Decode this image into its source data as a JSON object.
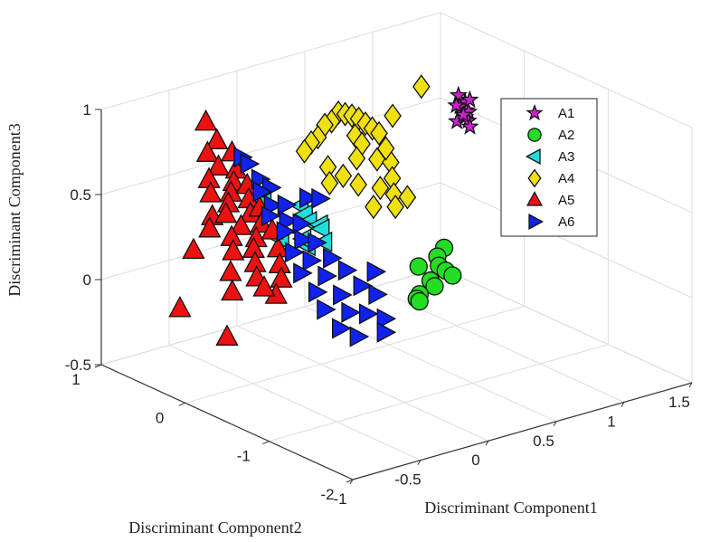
{
  "chart_data": {
    "type": "scatter3d",
    "xlabel": "Discriminant Component1",
    "ylabel": "Discriminant Component2",
    "zlabel": "Discriminant Component3",
    "xlim": [
      -1,
      1.5
    ],
    "ylim": [
      -2,
      1
    ],
    "zlim": [
      -0.5,
      1
    ],
    "xticks": [
      "-1",
      "-0.5",
      "0",
      "0.5",
      "1",
      "1.5"
    ],
    "yticks": [
      "-2",
      "-1",
      "0",
      "1"
    ],
    "zticks": [
      "-0.5",
      "0",
      "0.5",
      "1"
    ],
    "grid": true,
    "legend_position": "top-right inside",
    "series": [
      {
        "name": "A1",
        "marker": "star",
        "color": "#cc22cc",
        "points": [
          [
            1.2,
            0.3,
            0.74
          ],
          [
            1.23,
            0.27,
            0.7
          ],
          [
            1.18,
            0.25,
            0.69
          ],
          [
            1.22,
            0.24,
            0.66
          ],
          [
            1.2,
            0.22,
            0.63
          ],
          [
            1.21,
            0.2,
            0.61
          ],
          [
            1.25,
            0.26,
            0.64
          ],
          [
            1.19,
            0.31,
            0.68
          ],
          [
            1.24,
            0.23,
            0.72
          ],
          [
            1.17,
            0.27,
            0.6
          ],
          [
            1.23,
            0.29,
            0.62
          ],
          [
            1.21,
            0.18,
            0.58
          ]
        ]
      },
      {
        "name": "A2",
        "marker": "circle",
        "color": "#22dd22",
        "points": [
          [
            0.6,
            -0.5,
            0.16
          ],
          [
            0.55,
            -0.5,
            0.12
          ],
          [
            0.5,
            -0.6,
            0.1
          ],
          [
            0.55,
            -0.6,
            0.06
          ],
          [
            0.6,
            -0.6,
            0.02
          ],
          [
            0.35,
            -0.6,
            0.13
          ],
          [
            0.5,
            -0.5,
            -0.01
          ],
          [
            0.53,
            -0.5,
            -0.05
          ],
          [
            0.45,
            -0.45,
            -0.09
          ],
          [
            0.46,
            -0.4,
            -0.13
          ],
          [
            0.48,
            -0.4,
            -0.15
          ]
        ]
      },
      {
        "name": "A3",
        "marker": "triangle-left",
        "color": "#22dddd",
        "points": [
          [
            -0.05,
            0.6,
            0.34
          ],
          [
            0.1,
            0.4,
            0.32
          ],
          [
            0.1,
            0.35,
            0.28
          ],
          [
            0.1,
            0.3,
            0.25
          ],
          [
            0.15,
            0.25,
            0.23
          ],
          [
            0.1,
            0.15,
            0.24
          ],
          [
            0.15,
            0.2,
            0.14
          ],
          [
            0.12,
            0.35,
            0.09
          ],
          [
            0.12,
            0.4,
            0.12
          ],
          [
            0.05,
            0.55,
            0.1
          ]
        ]
      },
      {
        "name": "A4",
        "marker": "diamond",
        "color": "#f0e010",
        "points": [
          [
            0.5,
            0.6,
            0.73
          ],
          [
            0.55,
            0.6,
            0.71
          ],
          [
            0.45,
            0.6,
            0.69
          ],
          [
            0.6,
            0.6,
            0.69
          ],
          [
            0.4,
            0.6,
            0.68
          ],
          [
            0.65,
            0.6,
            0.66
          ],
          [
            0.35,
            0.6,
            0.62
          ],
          [
            0.7,
            0.6,
            0.62
          ],
          [
            0.5,
            0.4,
            0.64
          ],
          [
            0.3,
            0.6,
            0.6
          ],
          [
            0.75,
            0.6,
            0.58
          ],
          [
            0.25,
            0.6,
            0.56
          ],
          [
            0.8,
            0.6,
            0.54
          ],
          [
            0.9,
            0.6,
            0.62
          ],
          [
            0.55,
            0.4,
            0.58
          ],
          [
            0.45,
            0.3,
            0.54
          ],
          [
            0.6,
            0.3,
            0.5
          ],
          [
            0.35,
            0.3,
            0.46
          ],
          [
            0.7,
            0.3,
            0.46
          ],
          [
            0.4,
            0.2,
            0.42
          ],
          [
            0.65,
            0.2,
            0.4
          ],
          [
            0.5,
            0.1,
            0.4
          ],
          [
            0.6,
            0.1,
            0.34
          ],
          [
            0.45,
            0.1,
            0.3
          ],
          [
            0.7,
            0.1,
            0.3
          ],
          [
            0.55,
            0.0,
            0.3
          ],
          [
            0.3,
            0.4,
            0.5
          ],
          [
            1.05,
            0.5,
            0.78
          ],
          [
            0.85,
            0.6,
            0.44
          ],
          [
            0.25,
            0.3,
            0.44
          ]
        ]
      },
      {
        "name": "A5",
        "marker": "triangle-up",
        "color": "#ee1111",
        "points": [
          [
            -0.6,
            0.4,
            0.97
          ],
          [
            -0.55,
            0.35,
            0.86
          ],
          [
            -0.65,
            0.3,
            0.82
          ],
          [
            -0.5,
            0.25,
            0.8
          ],
          [
            -0.6,
            0.25,
            0.74
          ],
          [
            -0.5,
            0.2,
            0.71
          ],
          [
            -0.7,
            0.2,
            0.7
          ],
          [
            -0.55,
            0.15,
            0.66
          ],
          [
            -0.75,
            0.1,
            0.65
          ],
          [
            -0.6,
            0.1,
            0.62
          ],
          [
            -0.45,
            0.15,
            0.62
          ],
          [
            -0.65,
            0.05,
            0.58
          ],
          [
            -0.5,
            0.05,
            0.57
          ],
          [
            -0.8,
            0.0,
            0.55
          ],
          [
            -0.7,
            0.0,
            0.54
          ],
          [
            -0.55,
            -0.05,
            0.52
          ],
          [
            -0.45,
            0.0,
            0.52
          ],
          [
            -0.85,
            -0.05,
            0.5
          ],
          [
            -0.65,
            -0.1,
            0.48
          ],
          [
            -0.5,
            -0.1,
            0.46
          ],
          [
            -0.75,
            -0.15,
            0.45
          ],
          [
            -0.6,
            -0.2,
            0.42
          ],
          [
            -0.45,
            -0.15,
            0.42
          ],
          [
            -0.8,
            -0.25,
            0.4
          ],
          [
            -0.65,
            -0.25,
            0.38
          ],
          [
            -0.5,
            -0.3,
            0.36
          ],
          [
            -0.7,
            -0.35,
            0.33
          ],
          [
            -0.55,
            -0.4,
            0.3
          ],
          [
            -0.75,
            -0.45,
            0.28
          ],
          [
            -0.6,
            -0.5,
            0.25
          ],
          [
            -1.0,
            -0.1,
            0.42
          ],
          [
            -0.85,
            -0.3,
            0.3
          ],
          [
            -0.9,
            -0.4,
            0.22
          ],
          [
            -0.7,
            -0.6,
            0.2
          ],
          [
            -0.85,
            -0.7,
            0.3
          ],
          [
            -1.1,
            -0.1,
            0.1
          ],
          [
            -1.0,
            -0.5,
            0.0
          ]
        ]
      },
      {
        "name": "A6",
        "marker": "triangle-right",
        "color": "#1122ee",
        "points": [
          [
            -0.4,
            0.3,
            0.74
          ],
          [
            -0.35,
            0.3,
            0.69
          ],
          [
            -0.3,
            0.25,
            0.6
          ],
          [
            -0.25,
            0.2,
            0.55
          ],
          [
            -0.35,
            0.15,
            0.56
          ],
          [
            -0.3,
            0.1,
            0.48
          ],
          [
            -0.2,
            0.1,
            0.46
          ],
          [
            -0.35,
            0.05,
            0.44
          ],
          [
            -0.25,
            0.0,
            0.4
          ],
          [
            -0.15,
            0.0,
            0.36
          ],
          [
            -0.3,
            -0.05,
            0.36
          ],
          [
            -0.2,
            -0.1,
            0.3
          ],
          [
            -0.1,
            -0.1,
            0.26
          ],
          [
            -0.3,
            -0.15,
            0.26
          ],
          [
            -0.2,
            -0.2,
            0.2
          ],
          [
            -0.05,
            -0.2,
            0.18
          ],
          [
            -0.3,
            -0.25,
            0.16
          ],
          [
            -0.15,
            -0.3,
            0.12
          ],
          [
            0.0,
            -0.3,
            0.12
          ],
          [
            -0.25,
            -0.35,
            0.06
          ],
          [
            -0.1,
            -0.4,
            0.02
          ],
          [
            0.05,
            -0.4,
            0.04
          ],
          [
            -0.25,
            -0.45,
            -0.02
          ],
          [
            -0.1,
            -0.5,
            -0.06
          ],
          [
            0.1,
            -0.5,
            0.0
          ],
          [
            -0.2,
            -0.55,
            -0.12
          ],
          [
            0.0,
            -0.55,
            -0.08
          ],
          [
            -0.1,
            -0.6,
            -0.18
          ],
          [
            0.1,
            -0.6,
            -0.12
          ],
          [
            0.15,
            -0.4,
            0.1
          ],
          [
            0.1,
            -0.6,
            -0.2
          ],
          [
            -0.1,
            0.0,
            0.5
          ],
          [
            0.05,
            0.1,
            0.44
          ]
        ]
      }
    ]
  }
}
